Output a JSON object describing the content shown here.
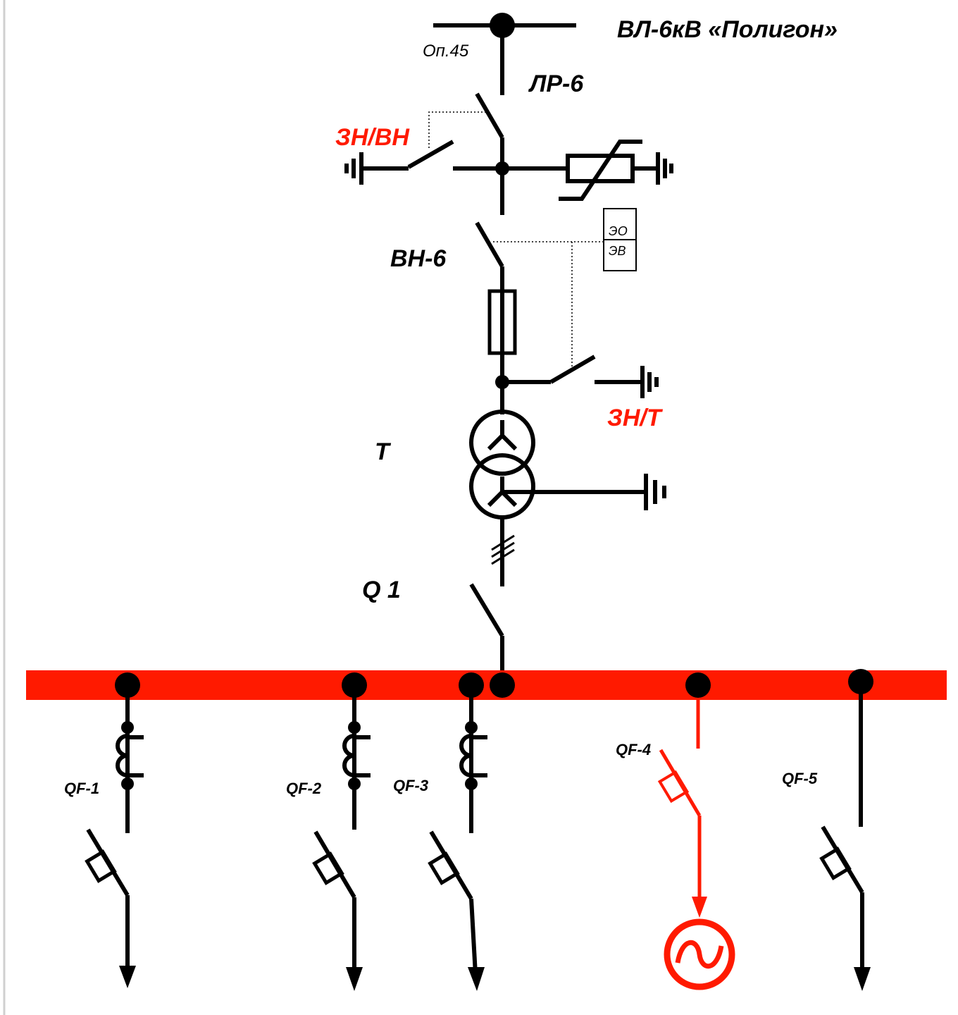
{
  "diagram": {
    "line_title": "ВЛ-6кВ «Полигон»",
    "pole_label": "Оп.45",
    "disconnector_label": "ЛР-6",
    "earthing_switch_hv_label": "ЗН/ВН",
    "load_switch_label": "ВН-6",
    "drive_eo_label": "ЭО",
    "drive_ev_label": "ЭВ",
    "earthing_switch_t_label": "ЗН/Т",
    "transformer_label": "Т",
    "main_switch_label": "Q 1",
    "feeders": [
      "QF-1",
      "QF-2",
      "QF-3",
      "QF-4",
      "QF-5"
    ],
    "colors": {
      "line": "#000000",
      "highlight": "#ff1a00",
      "bus": "#ff1a00"
    }
  }
}
